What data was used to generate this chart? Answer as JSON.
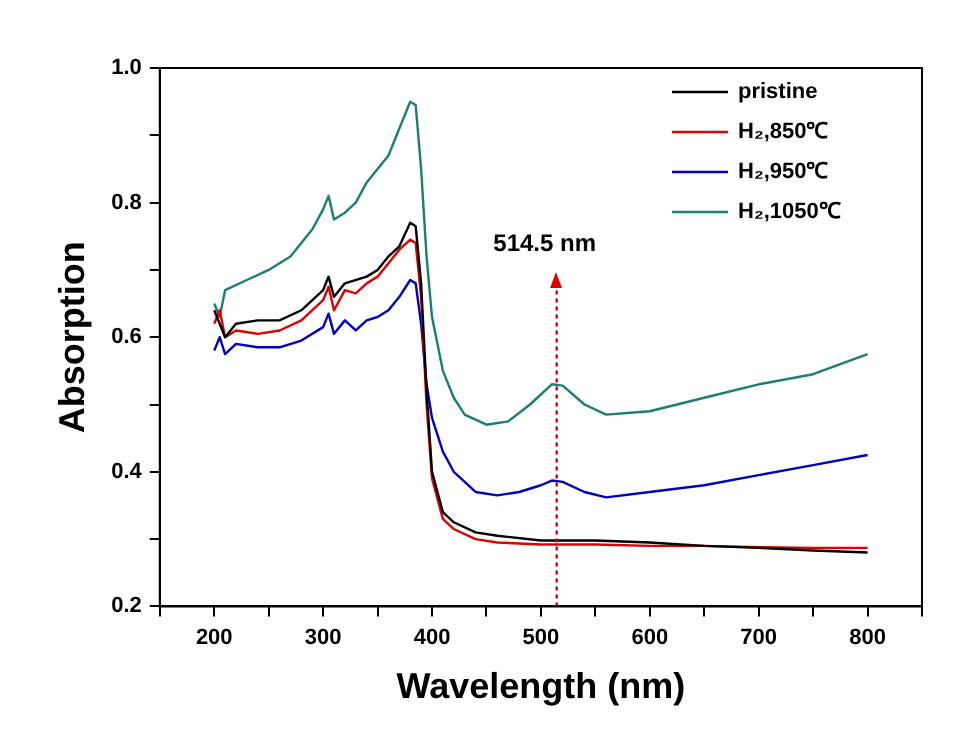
{
  "chart_data": {
    "type": "line",
    "xlabel": "Wavelength (nm)",
    "ylabel": "Absorption",
    "xlim": [
      150,
      850
    ],
    "ylim": [
      0.2,
      1.0
    ],
    "xticks": [
      {
        "value": 150,
        "label": null
      },
      200,
      {
        "value": 250,
        "label": null
      },
      300,
      {
        "value": 350,
        "label": null
      },
      400,
      {
        "value": 450,
        "label": null
      },
      500,
      {
        "value": 550,
        "label": null
      },
      600,
      {
        "value": 650,
        "label": null
      },
      700,
      {
        "value": 750,
        "label": null
      },
      800,
      {
        "value": 850,
        "label": null
      }
    ],
    "yticks": [
      {
        "value": 0.2,
        "label": "0.2"
      },
      {
        "value": 0.3,
        "label": null
      },
      {
        "value": 0.4,
        "label": "0.4"
      },
      {
        "value": 0.5,
        "label": null
      },
      {
        "value": 0.6,
        "label": "0.6"
      },
      {
        "value": 0.7,
        "label": null
      },
      {
        "value": 0.8,
        "label": "0.8"
      },
      {
        "value": 0.9,
        "label": null
      },
      {
        "value": 1.0,
        "label": "1.0"
      }
    ],
    "grid": false,
    "legend": "top right",
    "marker": "none",
    "line_style": "solid",
    "annotations": [
      "514.5 nm"
    ],
    "ref_lines": [
      {
        "axis": "x",
        "value": 514.5,
        "color": "#e00000",
        "line_style": "dotted"
      }
    ],
    "series": [
      {
        "name": "pristine",
        "color": "#000000",
        "x": [
          200,
          205,
          210,
          220,
          240,
          260,
          280,
          300,
          305,
          310,
          320,
          340,
          350,
          360,
          370,
          380,
          385,
          390,
          395,
          400,
          410,
          420,
          440,
          460,
          500,
          550,
          600,
          650,
          700,
          750,
          800
        ],
        "values": [
          0.64,
          0.62,
          0.6,
          0.62,
          0.625,
          0.625,
          0.64,
          0.67,
          0.69,
          0.66,
          0.68,
          0.69,
          0.7,
          0.72,
          0.735,
          0.77,
          0.765,
          0.68,
          0.52,
          0.4,
          0.34,
          0.325,
          0.31,
          0.305,
          0.298,
          0.298,
          0.295,
          0.29,
          0.287,
          0.283,
          0.28
        ]
      },
      {
        "name": "H₂,850℃",
        "color": "#e00000",
        "x": [
          200,
          205,
          210,
          220,
          240,
          260,
          280,
          300,
          305,
          310,
          320,
          330,
          340,
          350,
          360,
          365,
          370,
          380,
          385,
          390,
          395,
          400,
          410,
          420,
          440,
          460,
          500,
          550,
          600,
          650,
          700,
          750,
          800
        ],
        "values": [
          0.62,
          0.64,
          0.6,
          0.61,
          0.605,
          0.61,
          0.625,
          0.655,
          0.675,
          0.64,
          0.67,
          0.665,
          0.68,
          0.69,
          0.71,
          0.72,
          0.73,
          0.745,
          0.74,
          0.66,
          0.5,
          0.39,
          0.33,
          0.315,
          0.3,
          0.295,
          0.292,
          0.292,
          0.29,
          0.29,
          0.288,
          0.287,
          0.287
        ]
      },
      {
        "name": "H₂,950℃",
        "color": "#0000c0",
        "x": [
          200,
          205,
          210,
          220,
          240,
          260,
          280,
          300,
          305,
          310,
          320,
          330,
          340,
          350,
          360,
          370,
          380,
          385,
          390,
          395,
          400,
          410,
          420,
          440,
          460,
          480,
          500,
          510,
          520,
          540,
          560,
          600,
          650,
          700,
          750,
          800
        ],
        "values": [
          0.58,
          0.6,
          0.575,
          0.59,
          0.585,
          0.585,
          0.595,
          0.615,
          0.635,
          0.605,
          0.625,
          0.61,
          0.625,
          0.63,
          0.64,
          0.66,
          0.685,
          0.68,
          0.62,
          0.53,
          0.48,
          0.43,
          0.4,
          0.37,
          0.365,
          0.37,
          0.38,
          0.387,
          0.385,
          0.37,
          0.362,
          0.37,
          0.38,
          0.395,
          0.41,
          0.425
        ]
      },
      {
        "name": "H₂,1050℃",
        "color": "#1a7f70",
        "x": [
          200,
          205,
          210,
          230,
          250,
          270,
          290,
          300,
          305,
          310,
          320,
          330,
          340,
          350,
          360,
          370,
          380,
          385,
          390,
          395,
          400,
          410,
          420,
          430,
          450,
          470,
          490,
          510,
          520,
          540,
          560,
          600,
          650,
          700,
          750,
          800
        ],
        "values": [
          0.65,
          0.63,
          0.67,
          0.685,
          0.7,
          0.72,
          0.76,
          0.79,
          0.81,
          0.775,
          0.785,
          0.8,
          0.83,
          0.85,
          0.87,
          0.91,
          0.95,
          0.945,
          0.85,
          0.72,
          0.63,
          0.55,
          0.51,
          0.485,
          0.47,
          0.475,
          0.5,
          0.53,
          0.528,
          0.5,
          0.485,
          0.49,
          0.51,
          0.53,
          0.545,
          0.575
        ]
      }
    ]
  }
}
